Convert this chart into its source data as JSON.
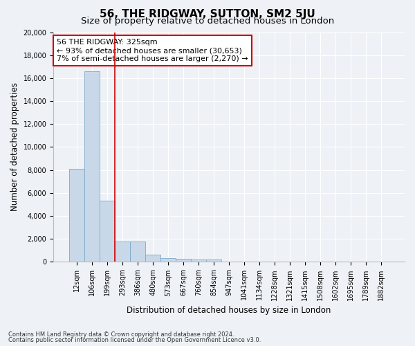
{
  "title": "56, THE RIDGWAY, SUTTON, SM2 5JU",
  "subtitle": "Size of property relative to detached houses in London",
  "xlabel": "Distribution of detached houses by size in London",
  "ylabel": "Number of detached properties",
  "footnote1": "Contains HM Land Registry data © Crown copyright and database right 2024.",
  "footnote2": "Contains public sector information licensed under the Open Government Licence v3.0.",
  "annotation_title": "56 THE RIDGWAY: 325sqm",
  "annotation_line1": "← 93% of detached houses are smaller (30,653)",
  "annotation_line2": "7% of semi-detached houses are larger (2,270) →",
  "bar_color": "#c8d8e8",
  "bar_edge_color": "#7aaac8",
  "vline_color": "#cc0000",
  "annotation_box_color": "#ffffff",
  "annotation_box_edge": "#cc0000",
  "categories": [
    "12sqm",
    "106sqm",
    "199sqm",
    "293sqm",
    "386sqm",
    "480sqm",
    "573sqm",
    "667sqm",
    "760sqm",
    "854sqm",
    "947sqm",
    "1041sqm",
    "1134sqm",
    "1228sqm",
    "1321sqm",
    "1415sqm",
    "1508sqm",
    "1602sqm",
    "1695sqm",
    "1789sqm",
    "1882sqm"
  ],
  "values": [
    8100,
    16600,
    5300,
    1750,
    1750,
    650,
    350,
    280,
    220,
    200,
    0,
    0,
    0,
    0,
    0,
    0,
    0,
    0,
    0,
    0,
    0
  ],
  "ylim": [
    0,
    20000
  ],
  "yticks": [
    0,
    2000,
    4000,
    6000,
    8000,
    10000,
    12000,
    14000,
    16000,
    18000,
    20000
  ],
  "vline_pos": 2.5,
  "bg_color": "#eef2f7",
  "grid_color": "#ffffff",
  "title_fontsize": 11,
  "subtitle_fontsize": 9.5,
  "axis_label_fontsize": 8.5,
  "tick_fontsize": 7,
  "annotation_fontsize": 8
}
